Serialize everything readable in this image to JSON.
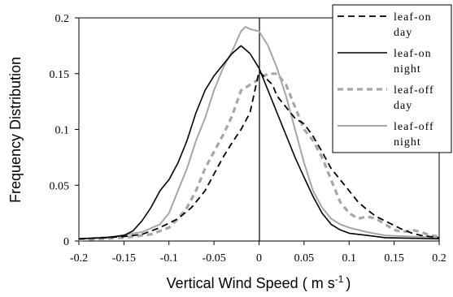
{
  "chart_data": {
    "type": "line",
    "xlabel": "Vertical Wind Speed ( m s",
    "xlabel_sup": "-1",
    "xlabel_close": ")",
    "ylabel": "Frequency Distribution",
    "xlim": [
      -0.2,
      0.2
    ],
    "ylim": [
      0,
      0.2
    ],
    "x_ticks": [
      "-0.2",
      "-0.15",
      "-0.1",
      "-0.05",
      "0",
      "0.05",
      "0.1",
      "0.15",
      "0.2"
    ],
    "y_ticks": [
      "0",
      "0.05",
      "0.1",
      "0.15",
      "0.2"
    ],
    "legend_position": "top-right",
    "series": [
      {
        "name": "leaf-on day",
        "color": "#000000",
        "style": "dashed",
        "width": 1.8,
        "points": [
          [
            -0.2,
            0.002
          ],
          [
            -0.17,
            0.003
          ],
          [
            -0.15,
            0.004
          ],
          [
            -0.13,
            0.006
          ],
          [
            -0.11,
            0.012
          ],
          [
            -0.09,
            0.02
          ],
          [
            -0.075,
            0.03
          ],
          [
            -0.06,
            0.045
          ],
          [
            -0.05,
            0.06
          ],
          [
            -0.04,
            0.075
          ],
          [
            -0.03,
            0.088
          ],
          [
            -0.02,
            0.1
          ],
          [
            -0.01,
            0.115
          ],
          [
            0,
            0.152
          ],
          [
            0.005,
            0.148
          ],
          [
            0.015,
            0.14
          ],
          [
            0.02,
            0.13
          ],
          [
            0.03,
            0.12
          ],
          [
            0.04,
            0.11
          ],
          [
            0.05,
            0.105
          ],
          [
            0.06,
            0.094
          ],
          [
            0.07,
            0.08
          ],
          [
            0.08,
            0.065
          ],
          [
            0.09,
            0.055
          ],
          [
            0.1,
            0.045
          ],
          [
            0.11,
            0.035
          ],
          [
            0.12,
            0.028
          ],
          [
            0.13,
            0.022
          ],
          [
            0.14,
            0.018
          ],
          [
            0.15,
            0.014
          ],
          [
            0.16,
            0.01
          ],
          [
            0.17,
            0.007
          ],
          [
            0.18,
            0.005
          ],
          [
            0.2,
            0.003
          ]
        ]
      },
      {
        "name": "leaf-on night",
        "color": "#000000",
        "style": "solid",
        "width": 1.6,
        "points": [
          [
            -0.2,
            0.002
          ],
          [
            -0.17,
            0.003
          ],
          [
            -0.15,
            0.005
          ],
          [
            -0.14,
            0.009
          ],
          [
            -0.13,
            0.018
          ],
          [
            -0.12,
            0.03
          ],
          [
            -0.11,
            0.045
          ],
          [
            -0.1,
            0.055
          ],
          [
            -0.09,
            0.07
          ],
          [
            -0.08,
            0.09
          ],
          [
            -0.07,
            0.115
          ],
          [
            -0.06,
            0.135
          ],
          [
            -0.05,
            0.148
          ],
          [
            -0.04,
            0.158
          ],
          [
            -0.03,
            0.168
          ],
          [
            -0.02,
            0.175
          ],
          [
            -0.01,
            0.168
          ],
          [
            0,
            0.155
          ],
          [
            0.01,
            0.135
          ],
          [
            0.02,
            0.115
          ],
          [
            0.03,
            0.095
          ],
          [
            0.04,
            0.075
          ],
          [
            0.05,
            0.057
          ],
          [
            0.06,
            0.04
          ],
          [
            0.07,
            0.025
          ],
          [
            0.08,
            0.015
          ],
          [
            0.09,
            0.01
          ],
          [
            0.1,
            0.007
          ],
          [
            0.12,
            0.005
          ],
          [
            0.14,
            0.003
          ],
          [
            0.2,
            0.002
          ]
        ]
      },
      {
        "name": "leaf-off day",
        "color": "#a6a6a6",
        "style": "dashed",
        "width": 3.2,
        "points": [
          [
            -0.2,
            0.001
          ],
          [
            -0.15,
            0.003
          ],
          [
            -0.12,
            0.006
          ],
          [
            -0.1,
            0.012
          ],
          [
            -0.09,
            0.02
          ],
          [
            -0.08,
            0.03
          ],
          [
            -0.07,
            0.045
          ],
          [
            -0.06,
            0.065
          ],
          [
            -0.05,
            0.08
          ],
          [
            -0.04,
            0.095
          ],
          [
            -0.03,
            0.112
          ],
          [
            -0.02,
            0.135
          ],
          [
            -0.01,
            0.14
          ],
          [
            0,
            0.145
          ],
          [
            0.01,
            0.15
          ],
          [
            0.02,
            0.15
          ],
          [
            0.03,
            0.14
          ],
          [
            0.04,
            0.12
          ],
          [
            0.05,
            0.1
          ],
          [
            0.06,
            0.09
          ],
          [
            0.07,
            0.075
          ],
          [
            0.08,
            0.055
          ],
          [
            0.09,
            0.035
          ],
          [
            0.1,
            0.025
          ],
          [
            0.11,
            0.02
          ],
          [
            0.12,
            0.022
          ],
          [
            0.13,
            0.02
          ],
          [
            0.14,
            0.015
          ],
          [
            0.15,
            0.01
          ],
          [
            0.16,
            0.008
          ],
          [
            0.17,
            0.01
          ],
          [
            0.18,
            0.008
          ],
          [
            0.19,
            0.005
          ],
          [
            0.2,
            0.004
          ]
        ]
      },
      {
        "name": "leaf-off night",
        "color": "#a6a6a6",
        "style": "solid",
        "width": 2,
        "points": [
          [
            -0.2,
            0.002
          ],
          [
            -0.16,
            0.004
          ],
          [
            -0.13,
            0.008
          ],
          [
            -0.11,
            0.015
          ],
          [
            -0.1,
            0.025
          ],
          [
            -0.09,
            0.045
          ],
          [
            -0.08,
            0.065
          ],
          [
            -0.07,
            0.09
          ],
          [
            -0.06,
            0.11
          ],
          [
            -0.05,
            0.135
          ],
          [
            -0.04,
            0.155
          ],
          [
            -0.03,
            0.17
          ],
          [
            -0.02,
            0.188
          ],
          [
            -0.015,
            0.192
          ],
          [
            -0.01,
            0.19
          ],
          [
            0,
            0.188
          ],
          [
            0.01,
            0.175
          ],
          [
            0.02,
            0.155
          ],
          [
            0.03,
            0.13
          ],
          [
            0.04,
            0.1
          ],
          [
            0.05,
            0.07
          ],
          [
            0.06,
            0.045
          ],
          [
            0.07,
            0.03
          ],
          [
            0.08,
            0.02
          ],
          [
            0.09,
            0.015
          ],
          [
            0.1,
            0.012
          ],
          [
            0.12,
            0.008
          ],
          [
            0.14,
            0.005
          ],
          [
            0.2,
            0.003
          ]
        ]
      }
    ]
  }
}
